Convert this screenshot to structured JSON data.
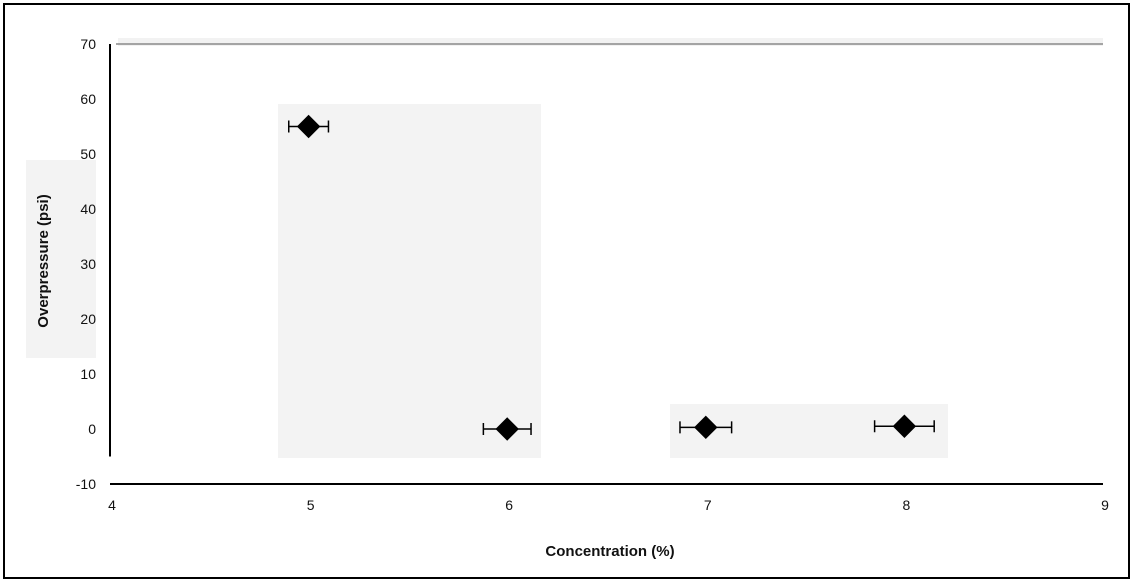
{
  "chart_data": {
    "type": "scatter",
    "title": "",
    "xlabel": "Concentration (%)",
    "ylabel": "Overpressure (psi)",
    "xlim": [
      4,
      9
    ],
    "ylim": [
      -10,
      70
    ],
    "x_ticks": [
      "4",
      "5",
      "6",
      "7",
      "8",
      "9"
    ],
    "y_ticks": [
      "70",
      "60",
      "50",
      "40",
      "30",
      "20",
      "10",
      "0",
      "-10"
    ],
    "grid": false,
    "legend": "none",
    "marker": "diamond",
    "marker_color": "#000000",
    "series": [
      {
        "points": [
          {
            "x": 5,
            "y": 55,
            "xerr": 0.1
          },
          {
            "x": 6,
            "y": 0,
            "xerr": 0.12
          },
          {
            "x": 7,
            "y": 0.3,
            "xerr": 0.13
          },
          {
            "x": 8,
            "y": 0.5,
            "xerr": 0.15
          }
        ]
      }
    ]
  }
}
